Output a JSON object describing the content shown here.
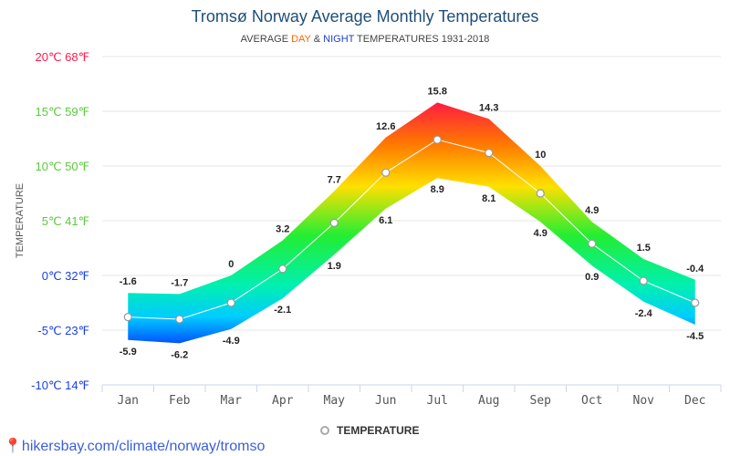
{
  "chart_data": {
    "type": "area",
    "title": "Tromsø Norway Average Monthly Temperatures",
    "subtitle": {
      "prefix": "AVERAGE ",
      "day": "DAY",
      "amp": " & ",
      "night": "NIGHT",
      "suffix": " TEMPERATURES 1931-2018"
    },
    "subtitle_colors": {
      "day": "#ff6600",
      "night": "#1a3fcc"
    },
    "ylabel": "TEMPERATURE",
    "ylim": [
      -10,
      20
    ],
    "yticks": [
      {
        "value": 20,
        "label": "20℃ 68℉",
        "color": "#ff1a4d"
      },
      {
        "value": 15,
        "label": "15℃ 59℉",
        "color": "#5cc93e"
      },
      {
        "value": 10,
        "label": "10℃ 50℉",
        "color": "#5cc93e"
      },
      {
        "value": 5,
        "label": "5℃ 41℉",
        "color": "#5cc93e"
      },
      {
        "value": 0,
        "label": "0℃ 32℉",
        "color": "#1a3fe6"
      },
      {
        "value": -5,
        "label": "-5℃ 23℉",
        "color": "#1a3fe6"
      },
      {
        "value": -10,
        "label": "-10℃ 14℉",
        "color": "#1a3fe6"
      }
    ],
    "categories": [
      "Jan",
      "Feb",
      "Mar",
      "Apr",
      "May",
      "Jun",
      "Jul",
      "Aug",
      "Sep",
      "Oct",
      "Nov",
      "Dec"
    ],
    "day": [
      -1.6,
      -1.7,
      0,
      3.2,
      7.7,
      12.6,
      15.8,
      14.3,
      10,
      4.9,
      1.5,
      -0.4
    ],
    "night": [
      -5.9,
      -6.2,
      -4.9,
      -2.1,
      1.9,
      6.1,
      8.9,
      8.1,
      4.9,
      0.9,
      -2.4,
      -4.5
    ],
    "series": [
      {
        "name": "TEMPERATURE",
        "values": [
          -3.8,
          -4.0,
          -2.5,
          0.6,
          4.8,
          9.4,
          12.4,
          11.2,
          7.5,
          2.9,
          -0.5,
          -2.5
        ]
      }
    ],
    "grid": true,
    "legend": "bottom"
  },
  "source": "hikersbay.com/climate/norway/tromso"
}
